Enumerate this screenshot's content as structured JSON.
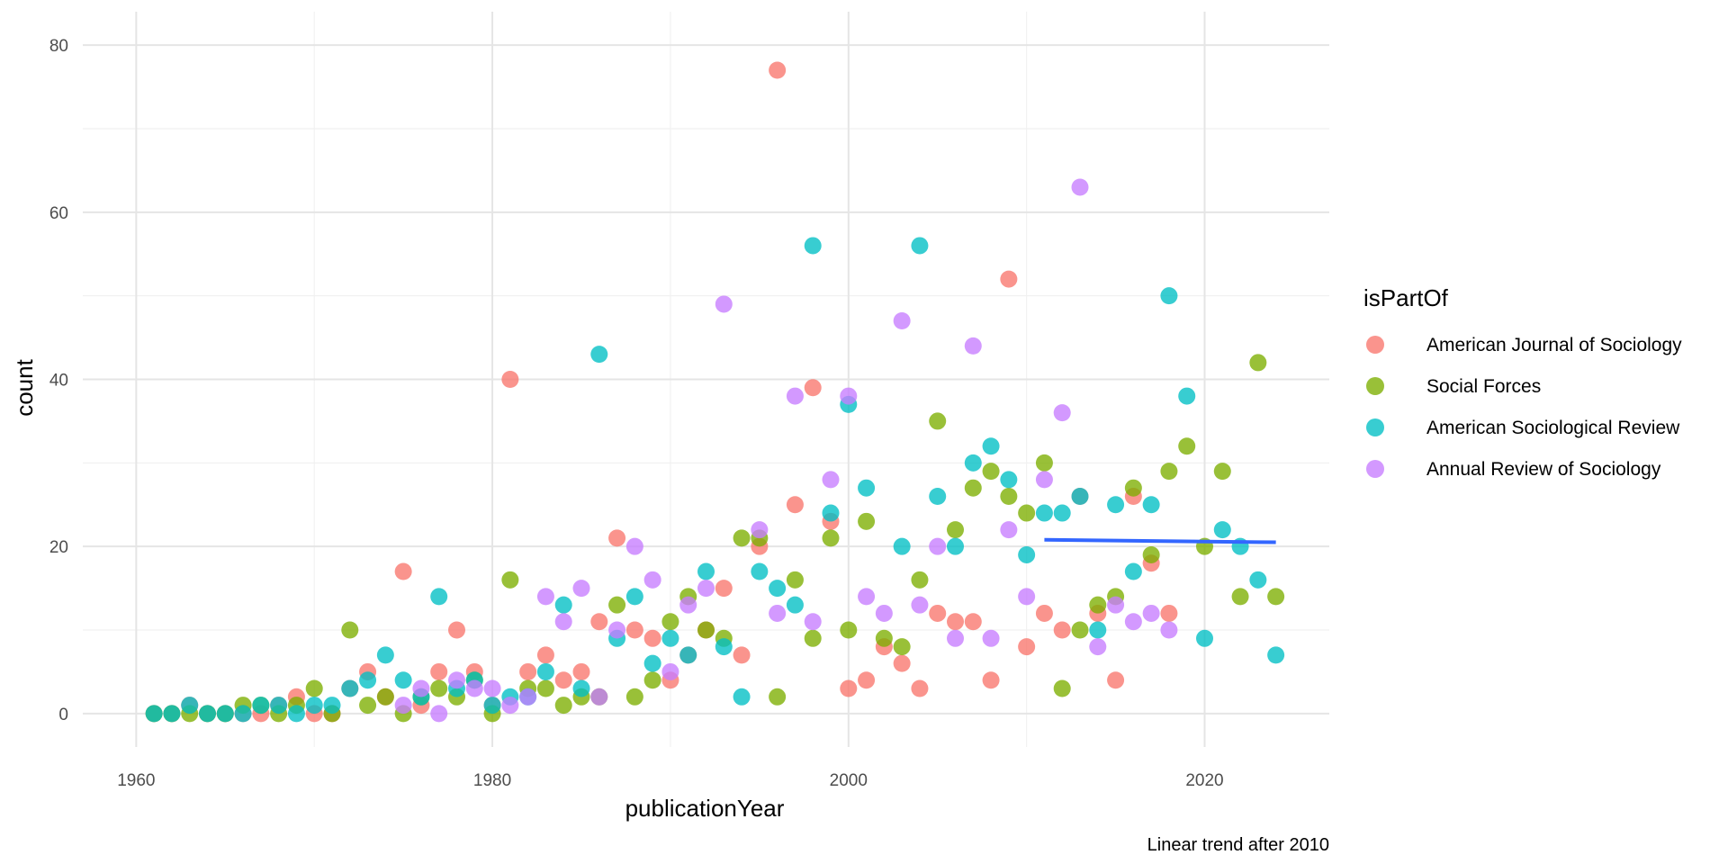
{
  "chart_data": {
    "type": "scatter",
    "xlabel": "publicationYear",
    "ylabel": "count",
    "xlim": [
      1957,
      2027
    ],
    "ylim": [
      -4,
      84
    ],
    "x_ticks": [
      1960,
      1980,
      2000,
      2020
    ],
    "y_ticks": [
      0,
      20,
      40,
      60,
      80
    ],
    "x_tick_labels": [
      "1960",
      "1980",
      "2000",
      "2020"
    ],
    "y_tick_labels": [
      "0",
      "20",
      "40",
      "60",
      "80"
    ],
    "grid": true,
    "legend_title": "isPartOf",
    "legend_position": "right",
    "caption": "Linear trend after 2010",
    "colors": {
      "American Journal of Sociology": "#F8766D",
      "Social Forces": "#7CAE00",
      "American Sociological Review": "#00BFC4",
      "Annual Review of Sociology": "#C77CFF",
      "trend": "#3366FF"
    },
    "series": [
      {
        "name": "American Journal of Sociology",
        "points": [
          [
            1961,
            0
          ],
          [
            1962,
            0
          ],
          [
            1963,
            1
          ],
          [
            1964,
            0
          ],
          [
            1965,
            0
          ],
          [
            1966,
            0
          ],
          [
            1967,
            0
          ],
          [
            1968,
            1
          ],
          [
            1969,
            2
          ],
          [
            1970,
            0
          ],
          [
            1971,
            0
          ],
          [
            1972,
            3
          ],
          [
            1973,
            5
          ],
          [
            1974,
            2
          ],
          [
            1975,
            17
          ],
          [
            1976,
            1
          ],
          [
            1977,
            5
          ],
          [
            1978,
            10
          ],
          [
            1979,
            5
          ],
          [
            1980,
            1
          ],
          [
            1981,
            40
          ],
          [
            1982,
            5
          ],
          [
            1983,
            7
          ],
          [
            1984,
            4
          ],
          [
            1985,
            5
          ],
          [
            1986,
            11
          ],
          [
            1987,
            21
          ],
          [
            1988,
            10
          ],
          [
            1989,
            9
          ],
          [
            1990,
            4
          ],
          [
            1991,
            7
          ],
          [
            1992,
            10
          ],
          [
            1993,
            15
          ],
          [
            1994,
            7
          ],
          [
            1995,
            20
          ],
          [
            1996,
            77
          ],
          [
            1997,
            25
          ],
          [
            1998,
            39
          ],
          [
            1999,
            23
          ],
          [
            2000,
            3
          ],
          [
            2001,
            4
          ],
          [
            2002,
            8
          ],
          [
            2003,
            6
          ],
          [
            2004,
            3
          ],
          [
            2005,
            12
          ],
          [
            2006,
            11
          ],
          [
            2007,
            11
          ],
          [
            2008,
            4
          ],
          [
            2009,
            52
          ],
          [
            2010,
            8
          ],
          [
            2011,
            12
          ],
          [
            2012,
            10
          ],
          [
            2013,
            26
          ],
          [
            2014,
            12
          ],
          [
            2015,
            4
          ],
          [
            2016,
            26
          ],
          [
            2017,
            18
          ],
          [
            2018,
            12
          ]
        ]
      },
      {
        "name": "Social Forces",
        "points": [
          [
            1961,
            0
          ],
          [
            1962,
            0
          ],
          [
            1963,
            0
          ],
          [
            1964,
            0
          ],
          [
            1965,
            0
          ],
          [
            1966,
            1
          ],
          [
            1967,
            1
          ],
          [
            1968,
            0
          ],
          [
            1969,
            1
          ],
          [
            1970,
            3
          ],
          [
            1971,
            0
          ],
          [
            1972,
            10
          ],
          [
            1973,
            1
          ],
          [
            1974,
            2
          ],
          [
            1975,
            0
          ],
          [
            1976,
            2
          ],
          [
            1977,
            3
          ],
          [
            1978,
            2
          ],
          [
            1979,
            4
          ],
          [
            1980,
            0
          ],
          [
            1981,
            16
          ],
          [
            1982,
            3
          ],
          [
            1983,
            3
          ],
          [
            1984,
            1
          ],
          [
            1985,
            2
          ],
          [
            1986,
            2
          ],
          [
            1987,
            13
          ],
          [
            1988,
            2
          ],
          [
            1989,
            4
          ],
          [
            1990,
            11
          ],
          [
            1991,
            14
          ],
          [
            1992,
            10
          ],
          [
            1993,
            9
          ],
          [
            1994,
            21
          ],
          [
            1995,
            21
          ],
          [
            1996,
            2
          ],
          [
            1997,
            16
          ],
          [
            1998,
            9
          ],
          [
            1999,
            21
          ],
          [
            2000,
            10
          ],
          [
            2001,
            23
          ],
          [
            2002,
            9
          ],
          [
            2003,
            8
          ],
          [
            2004,
            16
          ],
          [
            2005,
            35
          ],
          [
            2006,
            22
          ],
          [
            2007,
            27
          ],
          [
            2008,
            29
          ],
          [
            2009,
            26
          ],
          [
            2010,
            24
          ],
          [
            2011,
            30
          ],
          [
            2012,
            3
          ],
          [
            2013,
            10
          ],
          [
            2014,
            13
          ],
          [
            2015,
            14
          ],
          [
            2016,
            27
          ],
          [
            2017,
            19
          ],
          [
            2018,
            29
          ],
          [
            2019,
            32
          ],
          [
            2020,
            20
          ],
          [
            2021,
            29
          ],
          [
            2022,
            14
          ],
          [
            2023,
            42
          ],
          [
            2024,
            14
          ]
        ]
      },
      {
        "name": "American Sociological Review",
        "points": [
          [
            1961,
            0
          ],
          [
            1962,
            0
          ],
          [
            1963,
            1
          ],
          [
            1964,
            0
          ],
          [
            1965,
            0
          ],
          [
            1966,
            0
          ],
          [
            1967,
            1
          ],
          [
            1968,
            1
          ],
          [
            1969,
            0
          ],
          [
            1970,
            1
          ],
          [
            1971,
            1
          ],
          [
            1972,
            3
          ],
          [
            1973,
            4
          ],
          [
            1974,
            7
          ],
          [
            1975,
            4
          ],
          [
            1976,
            2
          ],
          [
            1977,
            14
          ],
          [
            1978,
            3
          ],
          [
            1979,
            4
          ],
          [
            1980,
            1
          ],
          [
            1981,
            2
          ],
          [
            1982,
            2
          ],
          [
            1983,
            5
          ],
          [
            1984,
            13
          ],
          [
            1985,
            3
          ],
          [
            1986,
            43
          ],
          [
            1987,
            9
          ],
          [
            1988,
            14
          ],
          [
            1989,
            6
          ],
          [
            1990,
            9
          ],
          [
            1991,
            7
          ],
          [
            1992,
            17
          ],
          [
            1993,
            8
          ],
          [
            1994,
            2
          ],
          [
            1995,
            17
          ],
          [
            1996,
            15
          ],
          [
            1997,
            13
          ],
          [
            1998,
            56
          ],
          [
            1999,
            24
          ],
          [
            2000,
            37
          ],
          [
            2001,
            27
          ],
          [
            2003,
            20
          ],
          [
            2004,
            56
          ],
          [
            2005,
            26
          ],
          [
            2006,
            20
          ],
          [
            2007,
            30
          ],
          [
            2008,
            32
          ],
          [
            2009,
            28
          ],
          [
            2010,
            19
          ],
          [
            2011,
            24
          ],
          [
            2012,
            24
          ],
          [
            2013,
            26
          ],
          [
            2014,
            10
          ],
          [
            2015,
            25
          ],
          [
            2016,
            17
          ],
          [
            2017,
            25
          ],
          [
            2018,
            50
          ],
          [
            2019,
            38
          ],
          [
            2020,
            9
          ],
          [
            2021,
            22
          ],
          [
            2022,
            20
          ],
          [
            2023,
            16
          ],
          [
            2024,
            7
          ]
        ]
      },
      {
        "name": "Annual Review of Sociology",
        "points": [
          [
            1975,
            1
          ],
          [
            1976,
            3
          ],
          [
            1977,
            0
          ],
          [
            1978,
            4
          ],
          [
            1979,
            3
          ],
          [
            1980,
            3
          ],
          [
            1981,
            1
          ],
          [
            1982,
            2
          ],
          [
            1983,
            14
          ],
          [
            1984,
            11
          ],
          [
            1985,
            15
          ],
          [
            1986,
            2
          ],
          [
            1987,
            10
          ],
          [
            1988,
            20
          ],
          [
            1989,
            16
          ],
          [
            1990,
            5
          ],
          [
            1991,
            13
          ],
          [
            1992,
            15
          ],
          [
            1993,
            49
          ],
          [
            1995,
            22
          ],
          [
            1996,
            12
          ],
          [
            1997,
            38
          ],
          [
            1998,
            11
          ],
          [
            1999,
            28
          ],
          [
            2000,
            38
          ],
          [
            2001,
            14
          ],
          [
            2002,
            12
          ],
          [
            2003,
            47
          ],
          [
            2004,
            13
          ],
          [
            2005,
            20
          ],
          [
            2006,
            9
          ],
          [
            2007,
            44
          ],
          [
            2008,
            9
          ],
          [
            2009,
            22
          ],
          [
            2010,
            14
          ],
          [
            2011,
            28
          ],
          [
            2012,
            36
          ],
          [
            2013,
            63
          ],
          [
            2014,
            8
          ],
          [
            2015,
            13
          ],
          [
            2016,
            11
          ],
          [
            2017,
            12
          ],
          [
            2018,
            10
          ]
        ]
      }
    ],
    "trend_line": {
      "x": [
        2011,
        2024
      ],
      "y": [
        20.8,
        20.5
      ]
    }
  }
}
